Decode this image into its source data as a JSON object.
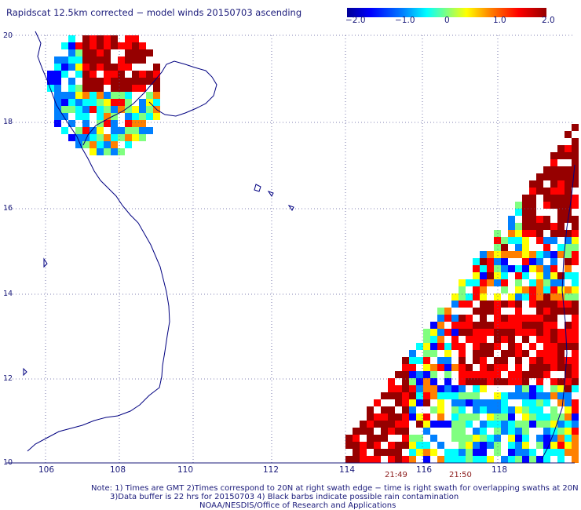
{
  "title": "Rapidscat 12.5km corrected − model winds 20150703 ascending",
  "colorbar": {
    "ticks": [
      "−2.0",
      "−1.0",
      "0",
      "1.0",
      "2.0"
    ],
    "colors": [
      "#000096",
      "#0000ff",
      "#0080ff",
      "#00ffff",
      "#80ff80",
      "#ffff00",
      "#ff8000",
      "#ff0000",
      "#960000"
    ]
  },
  "map": {
    "lon_range": [
      105,
      120
    ],
    "lat_range": [
      10,
      20
    ],
    "x_ticks": [
      "106",
      "108",
      "110",
      "112",
      "114",
      "116",
      "118"
    ],
    "y_ticks": [
      "20",
      "18",
      "16",
      "14",
      "12",
      "10"
    ],
    "grid": "dotted",
    "coast_color": "#000080",
    "time_labels": [
      "21:49",
      "21:50"
    ]
  },
  "notes": {
    "line1": "Note: 1) Times are GMT 2)Times correspond to 20N at right swath edge − time is right swath for overlapping swaths at 20N",
    "line2": "3)Data buffer is 22 hrs for 20150703 4) Black barbs indicate possible rain contamination",
    "line3": "NOAA/NESDIS/Office of Research and Applications"
  }
}
